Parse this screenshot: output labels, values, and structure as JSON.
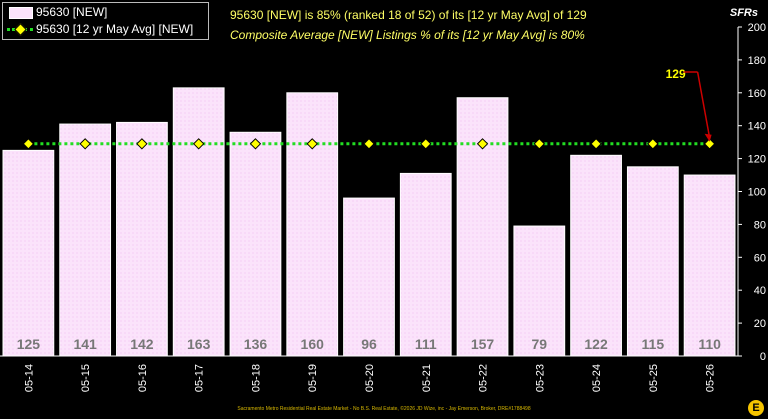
{
  "legend": {
    "series1": "95630 [NEW]",
    "series2": "95630 [12 yr May Avg] [NEW]"
  },
  "headline1": "95630 [NEW] is 85% (ranked 18 of 52)  of its [12 yr May Avg] of 129",
  "headline2": "Composite Average [NEW] Listings % of its [12 yr May Avg] is 80%",
  "units": "SFRs",
  "footer": "Sacramento Metro Residential Real Estate Market - No B.S. Real Estate, ©2026 JD Wize, inc - Jay Emerson, Broker, DRE#1788498",
  "logo_letter": "E",
  "colors": {
    "bar_fill": "#fbe3fb",
    "bar_border": "#ffffff",
    "avg_line": "#22dd22",
    "avg_marker": "#ffff00",
    "callout": "#cc0000",
    "headline_text": "#ffff66",
    "background": "#000000"
  },
  "chart_data": {
    "type": "bar",
    "categories": [
      "05-14",
      "05-15",
      "05-16",
      "05-17",
      "05-18",
      "05-19",
      "05-20",
      "05-21",
      "05-22",
      "05-23",
      "05-24",
      "05-25",
      "05-26"
    ],
    "series": [
      {
        "name": "95630 [NEW]",
        "type": "bar",
        "values": [
          125,
          141,
          142,
          163,
          136,
          160,
          96,
          111,
          157,
          79,
          122,
          115,
          110
        ]
      },
      {
        "name": "95630 [12 yr May Avg] [NEW]",
        "type": "line",
        "values": [
          129,
          129,
          129,
          129,
          129,
          129,
          129,
          129,
          129,
          129,
          129,
          129,
          129
        ]
      }
    ],
    "callout_label": "129",
    "ylim": [
      0,
      200
    ],
    "yticks": [
      0,
      20,
      40,
      60,
      80,
      100,
      120,
      140,
      160,
      180,
      200
    ],
    "ylabel": "SFRs",
    "grid": false,
    "legend_position": "top-left"
  }
}
